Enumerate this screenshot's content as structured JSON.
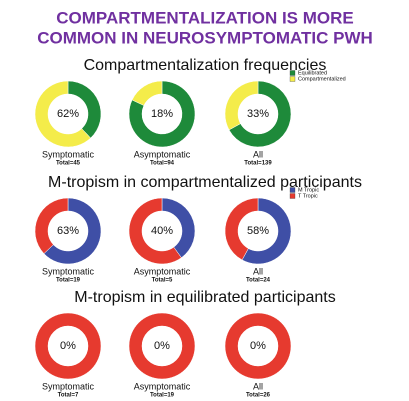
{
  "title": [
    "COMPARTMENTALIZATION IS MORE",
    "COMMON IN NEUROSYMPTOMATIC PWH"
  ],
  "chart_data": [
    {
      "type": "donut",
      "title": "Compartmentalization frequencies",
      "categories": [
        "Symptomatic",
        "Asymptomatic",
        "All"
      ],
      "totals": [
        "Total=45",
        "Total=94",
        "Total=139"
      ],
      "series": [
        {
          "name": "Equilibrated",
          "color": "#1e8a3a",
          "values": [
            38,
            82,
            67
          ]
        },
        {
          "name": "Compartmentalized",
          "color": "#f4ec4a",
          "values": [
            62,
            18,
            33
          ],
          "value_labels": [
            "62%",
            "18%",
            "33%"
          ]
        }
      ]
    },
    {
      "type": "donut",
      "title": "M-tropism in compartmentalized participants",
      "categories": [
        "Symptomatic",
        "Asymptomatic",
        "All"
      ],
      "totals": [
        "Total=19",
        "Total=5",
        "Total=24"
      ],
      "series": [
        {
          "name": "M Tropic",
          "color": "#3f4fa6",
          "values": [
            63,
            40,
            58
          ],
          "value_labels": [
            "63%",
            "40%",
            "58%"
          ]
        },
        {
          "name": "T Tropic",
          "color": "#e63a2f",
          "values": [
            37,
            60,
            42
          ]
        }
      ]
    },
    {
      "type": "donut",
      "title": "M-tropism in equilibrated participants",
      "categories": [
        "Symptomatic",
        "Asymptomatic",
        "All"
      ],
      "totals": [
        "Total=7",
        "Total=19",
        "Total=26"
      ],
      "series": [
        {
          "color": "#3f4fa6",
          "values": [
            0,
            0,
            0
          ],
          "value_labels": [
            "0%",
            "0%",
            "0%"
          ]
        },
        {
          "color": "#e63a2f",
          "values": [
            100,
            100,
            100
          ]
        }
      ]
    }
  ]
}
